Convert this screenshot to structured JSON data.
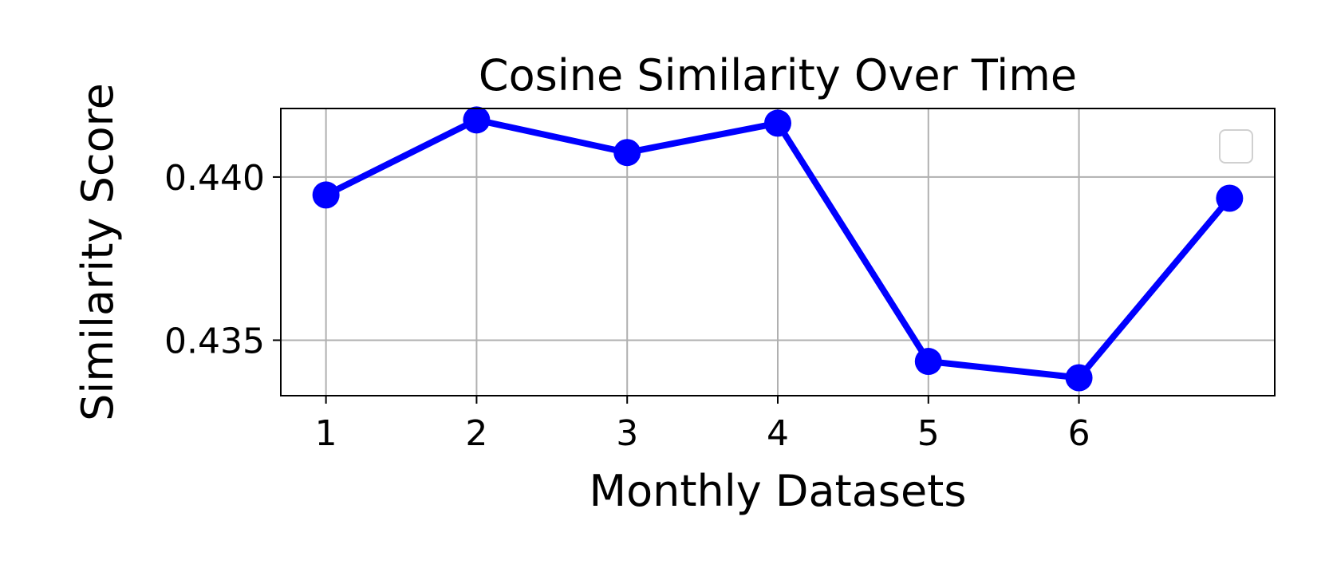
{
  "chart_data": {
    "type": "line",
    "title": "Cosine Similarity Over Time",
    "xlabel": "Monthly Datasets",
    "ylabel": "Similarity Score",
    "x_ticks": [
      "1",
      "2",
      "3",
      "4",
      "5",
      "6"
    ],
    "y_ticks": [
      "0.435",
      "0.440"
    ],
    "xlim": [
      0.7,
      7.3
    ],
    "ylim": [
      0.4333,
      0.4421
    ],
    "grid": true,
    "legend": {
      "visible": true,
      "entries": [],
      "placement": "top-right"
    },
    "series": [
      {
        "color": "#0000ff",
        "x": [
          1,
          2,
          3,
          4,
          5,
          6,
          7
        ],
        "values": [
          0.43945,
          0.44175,
          0.44075,
          0.44165,
          0.43435,
          0.43385,
          0.43935
        ]
      }
    ]
  }
}
